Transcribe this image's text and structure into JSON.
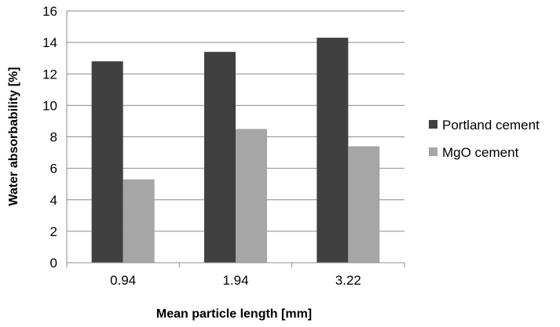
{
  "chart_data": {
    "type": "bar",
    "title": "",
    "xlabel": "Mean particle length [mm]",
    "ylabel": "Water absorbability [%]",
    "categories": [
      "0.94",
      "1.94",
      "3.22"
    ],
    "series": [
      {
        "name": "Portland cement",
        "values": [
          12.8,
          13.4,
          14.3
        ],
        "color": "#404040"
      },
      {
        "name": "MgO cement",
        "values": [
          5.3,
          8.5,
          7.4
        ],
        "color": "#a6a6a6"
      }
    ],
    "ylim": [
      0,
      16
    ],
    "yticks": [
      "0",
      "2",
      "4",
      "6",
      "8",
      "10",
      "12",
      "14",
      "16"
    ],
    "grid": "horizontal",
    "legend_position": "right"
  }
}
